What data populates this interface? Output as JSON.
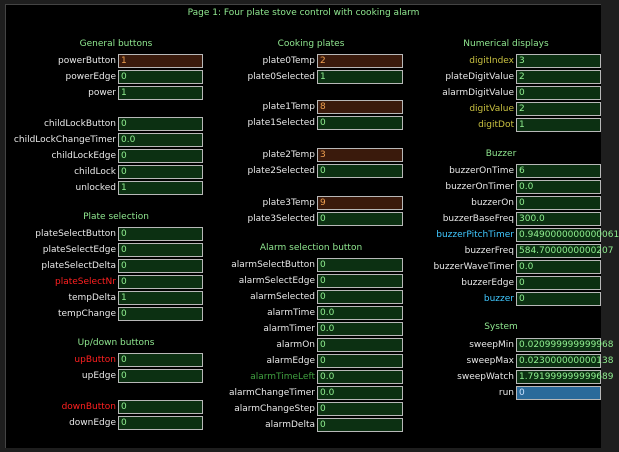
{
  "title": "Page 1: Four plate stove control with cooking alarm",
  "colors": {
    "normal": "#e8e8e8",
    "red": "#ff2020",
    "olive": "#c8c040",
    "cyan": "#40c8ff",
    "darkgreen": "#40a040"
  },
  "sections": [
    {
      "id": "general",
      "label": "General buttons"
    },
    {
      "id": "plate-selection",
      "label": "Plate selection"
    },
    {
      "id": "updown",
      "label": "Up/down buttons"
    },
    {
      "id": "cooking",
      "label": "Cooking plates"
    },
    {
      "id": "alarm",
      "label": "Alarm selection button"
    },
    {
      "id": "numerical",
      "label": "Numerical displays"
    },
    {
      "id": "buzzer",
      "label": "Buzzer"
    },
    {
      "id": "system",
      "label": "System"
    }
  ],
  "fields": [
    {
      "name": "powerButton",
      "value": "1",
      "style": "b",
      "color": "normal"
    },
    {
      "name": "powerEdge",
      "value": "0",
      "style": "g",
      "color": "normal"
    },
    {
      "name": "power",
      "value": "1",
      "style": "g",
      "color": "normal"
    },
    {
      "name": "childLockButton",
      "value": "0",
      "style": "g",
      "color": "normal"
    },
    {
      "name": "childLockChangeTimer",
      "value": "0.0",
      "style": "g",
      "color": "normal"
    },
    {
      "name": "childLockEdge",
      "value": "0",
      "style": "g",
      "color": "normal"
    },
    {
      "name": "childLock",
      "value": "0",
      "style": "g",
      "color": "normal"
    },
    {
      "name": "unlocked",
      "value": "1",
      "style": "g",
      "color": "normal"
    },
    {
      "name": "plateSelectButton",
      "value": "0",
      "style": "g",
      "color": "normal"
    },
    {
      "name": "plateSelectEdge",
      "value": "0",
      "style": "g",
      "color": "normal"
    },
    {
      "name": "plateSelectDelta",
      "value": "0",
      "style": "g",
      "color": "normal"
    },
    {
      "name": "plateSelectNr",
      "value": "0",
      "style": "g",
      "color": "red"
    },
    {
      "name": "tempDelta",
      "value": "1",
      "style": "g",
      "color": "normal"
    },
    {
      "name": "tempChange",
      "value": "0",
      "style": "g",
      "color": "normal"
    },
    {
      "name": "upButton",
      "value": "0",
      "style": "g",
      "color": "red"
    },
    {
      "name": "upEdge",
      "value": "0",
      "style": "g",
      "color": "normal"
    },
    {
      "name": "downButton",
      "value": "0",
      "style": "g",
      "color": "red"
    },
    {
      "name": "downEdge",
      "value": "0",
      "style": "g",
      "color": "normal"
    },
    {
      "name": "plate0Temp",
      "value": "2",
      "style": "b",
      "color": "normal"
    },
    {
      "name": "plate0Selected",
      "value": "1",
      "style": "g",
      "color": "normal"
    },
    {
      "name": "plate1Temp",
      "value": "8",
      "style": "b",
      "color": "normal"
    },
    {
      "name": "plate1Selected",
      "value": "0",
      "style": "g",
      "color": "normal"
    },
    {
      "name": "plate2Temp",
      "value": "3",
      "style": "b",
      "color": "normal"
    },
    {
      "name": "plate2Selected",
      "value": "0",
      "style": "g",
      "color": "normal"
    },
    {
      "name": "plate3Temp",
      "value": "9",
      "style": "b",
      "color": "normal"
    },
    {
      "name": "plate3Selected",
      "value": "0",
      "style": "g",
      "color": "normal"
    },
    {
      "name": "alarmSelectButton",
      "value": "0",
      "style": "g",
      "color": "normal"
    },
    {
      "name": "alarmSelectEdge",
      "value": "0",
      "style": "g",
      "color": "normal"
    },
    {
      "name": "alarmSelected",
      "value": "0",
      "style": "g",
      "color": "normal"
    },
    {
      "name": "alarmTime",
      "value": "0.0",
      "style": "g",
      "color": "normal"
    },
    {
      "name": "alarmTimer",
      "value": "0.0",
      "style": "g",
      "color": "normal"
    },
    {
      "name": "alarmOn",
      "value": "0",
      "style": "g",
      "color": "normal"
    },
    {
      "name": "alarmEdge",
      "value": "0",
      "style": "g",
      "color": "normal"
    },
    {
      "name": "alarmTimeLeft",
      "value": "0.0",
      "style": "g",
      "color": "darkgreen"
    },
    {
      "name": "alarmChangeTimer",
      "value": "0.0",
      "style": "g",
      "color": "normal"
    },
    {
      "name": "alarmChangeStep",
      "value": "0",
      "style": "g",
      "color": "normal"
    },
    {
      "name": "alarmDelta",
      "value": "0",
      "style": "g",
      "color": "normal"
    },
    {
      "name": "digitIndex",
      "value": "3",
      "style": "g",
      "color": "olive"
    },
    {
      "name": "plateDigitValue",
      "value": "2",
      "style": "g",
      "color": "normal"
    },
    {
      "name": "alarmDigitValue",
      "value": "0",
      "style": "g",
      "color": "normal"
    },
    {
      "name": "digitValue",
      "value": "2",
      "style": "g",
      "color": "olive"
    },
    {
      "name": "digitDot",
      "value": "1",
      "style": "g",
      "color": "olive"
    },
    {
      "name": "buzzerOnTime",
      "value": "6",
      "style": "g",
      "color": "normal"
    },
    {
      "name": "buzzerOnTimer",
      "value": "0.0",
      "style": "g",
      "color": "normal"
    },
    {
      "name": "buzzerOn",
      "value": "0",
      "style": "g",
      "color": "normal"
    },
    {
      "name": "buzzerBaseFreq",
      "value": "300.0",
      "style": "g",
      "color": "normal"
    },
    {
      "name": "buzzerPitchTimer",
      "value": "0.9490000000000061",
      "style": "g",
      "color": "cyan"
    },
    {
      "name": "buzzerFreq",
      "value": "584.7000000000207",
      "style": "g",
      "color": "normal"
    },
    {
      "name": "buzzerWaveTimer",
      "value": "0.0",
      "style": "g",
      "color": "normal"
    },
    {
      "name": "buzzerEdge",
      "value": "0",
      "style": "g",
      "color": "normal"
    },
    {
      "name": "buzzer",
      "value": "0",
      "style": "g",
      "color": "cyan"
    },
    {
      "name": "sweepMin",
      "value": "0.020999999999968",
      "style": "g",
      "color": "normal"
    },
    {
      "name": "sweepMax",
      "value": "0.023000000000138",
      "style": "g",
      "color": "normal"
    },
    {
      "name": "sweepWatch",
      "value": "1.791999999999689",
      "style": "g",
      "color": "normal"
    },
    {
      "name": "run",
      "value": "0",
      "style": "c",
      "color": "normal"
    }
  ]
}
